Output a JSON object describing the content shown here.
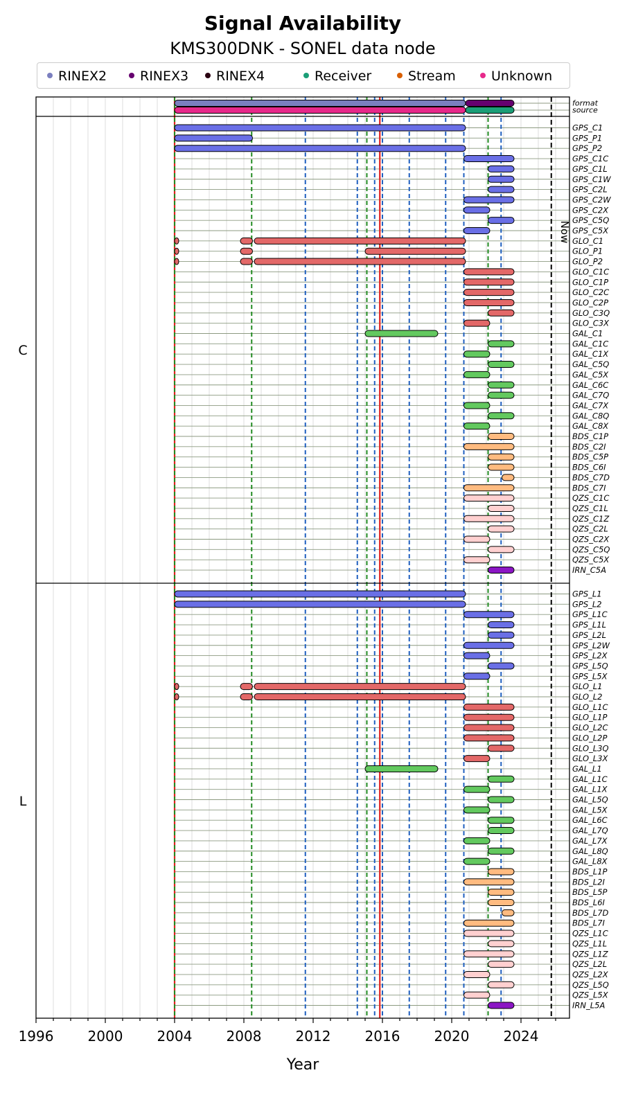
{
  "chart_data": {
    "type": "gantt",
    "title": "Signal Availability",
    "subtitle": "KMS300DNK - SONEL data node",
    "xlabel": "Year",
    "xlim": [
      1996,
      2026.8
    ],
    "xticks": [
      1996,
      2000,
      2004,
      2008,
      2012,
      2016,
      2020,
      2024
    ],
    "now_label": "Now",
    "now": 2025.75,
    "legend": [
      {
        "name": "RINEX2",
        "color": "#7b7fbf"
      },
      {
        "name": "RINEX3",
        "color": "#66006f"
      },
      {
        "name": "RINEX4",
        "color": "#2a0011"
      },
      {
        "name": "Receiver",
        "color": "#1b9e77"
      },
      {
        "name": "Stream",
        "color": "#d95f02"
      },
      {
        "name": "Unknown",
        "color": "#e7298a"
      }
    ],
    "constellation_colors": {
      "GPS": "#6a6fe6",
      "GLO": "#e36868",
      "GAL": "#63c95f",
      "BDS": "#ffbb80",
      "QZS": "#ffd0d0",
      "IRN": "#8b16c4"
    },
    "vlines": [
      {
        "x": 2004.0,
        "color": "#e02020",
        "style": "solid"
      },
      {
        "x": 2015.85,
        "color": "#e02020",
        "style": "solid"
      },
      {
        "x": 2004.0,
        "color": "#228b22",
        "style": "dashed"
      },
      {
        "x": 2008.45,
        "color": "#228b22",
        "style": "dashed"
      },
      {
        "x": 2015.1,
        "color": "#228b22",
        "style": "dashed"
      },
      {
        "x": 2022.1,
        "color": "#228b22",
        "style": "dashed"
      },
      {
        "x": 2011.55,
        "color": "#1f5fbf",
        "style": "dashed"
      },
      {
        "x": 2014.55,
        "color": "#1f5fbf",
        "style": "dashed"
      },
      {
        "x": 2015.55,
        "color": "#1f5fbf",
        "style": "dashed"
      },
      {
        "x": 2016.0,
        "color": "#1f5fbf",
        "style": "dashed"
      },
      {
        "x": 2017.55,
        "color": "#1f5fbf",
        "style": "dashed"
      },
      {
        "x": 2019.65,
        "color": "#1f5fbf",
        "style": "dashed"
      },
      {
        "x": 2020.7,
        "color": "#1f5fbf",
        "style": "dashed"
      },
      {
        "x": 2022.85,
        "color": "#1f5fbf",
        "style": "dashed"
      }
    ],
    "meta_rows": [
      {
        "label": "format",
        "segments": [
          [
            2004.0,
            2020.8,
            "#7b7fbf"
          ],
          [
            2020.8,
            2023.6,
            "#66006f"
          ]
        ]
      },
      {
        "label": "source",
        "segments": [
          [
            2004.0,
            2020.8,
            "#e7298a"
          ],
          [
            2020.8,
            2023.6,
            "#1b9e77"
          ]
        ]
      }
    ],
    "panels": [
      {
        "label": "C",
        "rows": [
          {
            "label": "GPS_C1",
            "segments": [
              [
                2004.0,
                2020.8
              ]
            ]
          },
          {
            "label": "GPS_P1",
            "segments": [
              [
                2004.0,
                2008.5
              ]
            ]
          },
          {
            "label": "GPS_P2",
            "segments": [
              [
                2004.0,
                2020.8
              ]
            ]
          },
          {
            "label": "GPS_C1C",
            "segments": [
              [
                2020.7,
                2023.6
              ]
            ]
          },
          {
            "label": "GPS_C1L",
            "segments": [
              [
                2022.1,
                2023.6
              ]
            ]
          },
          {
            "label": "GPS_C1W",
            "segments": [
              [
                2022.1,
                2023.6
              ]
            ]
          },
          {
            "label": "GPS_C2L",
            "segments": [
              [
                2022.1,
                2023.6
              ]
            ]
          },
          {
            "label": "GPS_C2W",
            "segments": [
              [
                2020.7,
                2023.6
              ]
            ]
          },
          {
            "label": "GPS_C2X",
            "segments": [
              [
                2020.7,
                2022.2
              ]
            ]
          },
          {
            "label": "GPS_C5Q",
            "segments": [
              [
                2022.1,
                2023.6
              ]
            ]
          },
          {
            "label": "GPS_C5X",
            "segments": [
              [
                2020.7,
                2022.2
              ]
            ]
          },
          {
            "label": "GLO_C1",
            "segments": [
              [
                2004.0,
                2004.1
              ],
              [
                2007.8,
                2008.5
              ],
              [
                2008.6,
                2020.8
              ]
            ]
          },
          {
            "label": "GLO_P1",
            "segments": [
              [
                2004.0,
                2004.1
              ],
              [
                2007.8,
                2008.5
              ],
              [
                2015.0,
                2020.8
              ]
            ]
          },
          {
            "label": "GLO_P2",
            "segments": [
              [
                2004.0,
                2004.1
              ],
              [
                2007.8,
                2008.5
              ],
              [
                2008.6,
                2020.8
              ]
            ]
          },
          {
            "label": "GLO_C1C",
            "segments": [
              [
                2020.7,
                2023.6
              ]
            ]
          },
          {
            "label": "GLO_C1P",
            "segments": [
              [
                2020.7,
                2023.6
              ]
            ]
          },
          {
            "label": "GLO_C2C",
            "segments": [
              [
                2020.7,
                2023.6
              ]
            ]
          },
          {
            "label": "GLO_C2P",
            "segments": [
              [
                2020.7,
                2023.6
              ]
            ]
          },
          {
            "label": "GLO_C3Q",
            "segments": [
              [
                2022.1,
                2023.6
              ]
            ]
          },
          {
            "label": "GLO_C3X",
            "segments": [
              [
                2020.7,
                2022.2
              ]
            ]
          },
          {
            "label": "GAL_C1",
            "segments": [
              [
                2015.0,
                2019.2
              ]
            ]
          },
          {
            "label": "GAL_C1C",
            "segments": [
              [
                2022.1,
                2023.6
              ]
            ]
          },
          {
            "label": "GAL_C1X",
            "segments": [
              [
                2020.7,
                2022.2
              ]
            ]
          },
          {
            "label": "GAL_C5Q",
            "segments": [
              [
                2022.1,
                2023.6
              ]
            ]
          },
          {
            "label": "GAL_C5X",
            "segments": [
              [
                2020.7,
                2022.2
              ]
            ]
          },
          {
            "label": "GAL_C6C",
            "segments": [
              [
                2022.1,
                2023.6
              ]
            ]
          },
          {
            "label": "GAL_C7Q",
            "segments": [
              [
                2022.1,
                2023.6
              ]
            ]
          },
          {
            "label": "GAL_C7X",
            "segments": [
              [
                2020.7,
                2022.2
              ]
            ]
          },
          {
            "label": "GAL_C8Q",
            "segments": [
              [
                2022.1,
                2023.6
              ]
            ]
          },
          {
            "label": "GAL_C8X",
            "segments": [
              [
                2020.7,
                2022.2
              ]
            ]
          },
          {
            "label": "BDS_C1P",
            "segments": [
              [
                2022.1,
                2023.6
              ]
            ]
          },
          {
            "label": "BDS_C2I",
            "segments": [
              [
                2020.7,
                2023.6
              ]
            ]
          },
          {
            "label": "BDS_C5P",
            "segments": [
              [
                2022.1,
                2023.6
              ]
            ]
          },
          {
            "label": "BDS_C6I",
            "segments": [
              [
                2022.1,
                2023.6
              ]
            ]
          },
          {
            "label": "BDS_C7D",
            "segments": [
              [
                2022.9,
                2023.6
              ]
            ]
          },
          {
            "label": "BDS_C7I",
            "segments": [
              [
                2020.7,
                2023.6
              ]
            ]
          },
          {
            "label": "QZS_C1C",
            "segments": [
              [
                2020.7,
                2023.6
              ]
            ]
          },
          {
            "label": "QZS_C1L",
            "segments": [
              [
                2022.1,
                2023.6
              ]
            ]
          },
          {
            "label": "QZS_C1Z",
            "segments": [
              [
                2020.7,
                2023.6
              ]
            ]
          },
          {
            "label": "QZS_C2L",
            "segments": [
              [
                2022.1,
                2023.6
              ]
            ]
          },
          {
            "label": "QZS_C2X",
            "segments": [
              [
                2020.7,
                2022.2
              ]
            ]
          },
          {
            "label": "QZS_C5Q",
            "segments": [
              [
                2022.1,
                2023.6
              ]
            ]
          },
          {
            "label": "QZS_C5X",
            "segments": [
              [
                2020.7,
                2022.2
              ]
            ]
          },
          {
            "label": "IRN_C5A",
            "segments": [
              [
                2022.1,
                2023.6
              ]
            ]
          }
        ]
      },
      {
        "label": "L",
        "rows": [
          {
            "label": "GPS_L1",
            "segments": [
              [
                2004.0,
                2020.8
              ]
            ]
          },
          {
            "label": "GPS_L2",
            "segments": [
              [
                2004.0,
                2020.8
              ]
            ]
          },
          {
            "label": "GPS_L1C",
            "segments": [
              [
                2020.7,
                2023.6
              ]
            ]
          },
          {
            "label": "GPS_L1L",
            "segments": [
              [
                2022.1,
                2023.6
              ]
            ]
          },
          {
            "label": "GPS_L2L",
            "segments": [
              [
                2022.1,
                2023.6
              ]
            ]
          },
          {
            "label": "GPS_L2W",
            "segments": [
              [
                2020.7,
                2023.6
              ]
            ]
          },
          {
            "label": "GPS_L2X",
            "segments": [
              [
                2020.7,
                2022.2
              ]
            ]
          },
          {
            "label": "GPS_L5Q",
            "segments": [
              [
                2022.1,
                2023.6
              ]
            ]
          },
          {
            "label": "GPS_L5X",
            "segments": [
              [
                2020.7,
                2022.2
              ]
            ]
          },
          {
            "label": "GLO_L1",
            "segments": [
              [
                2004.0,
                2004.1
              ],
              [
                2007.8,
                2008.5
              ],
              [
                2008.6,
                2020.8
              ]
            ]
          },
          {
            "label": "GLO_L2",
            "segments": [
              [
                2004.0,
                2004.1
              ],
              [
                2007.8,
                2008.5
              ],
              [
                2008.6,
                2020.8
              ]
            ]
          },
          {
            "label": "GLO_L1C",
            "segments": [
              [
                2020.7,
                2023.6
              ]
            ]
          },
          {
            "label": "GLO_L1P",
            "segments": [
              [
                2020.7,
                2023.6
              ]
            ]
          },
          {
            "label": "GLO_L2C",
            "segments": [
              [
                2020.7,
                2023.6
              ]
            ]
          },
          {
            "label": "GLO_L2P",
            "segments": [
              [
                2020.7,
                2023.6
              ]
            ]
          },
          {
            "label": "GLO_L3Q",
            "segments": [
              [
                2022.1,
                2023.6
              ]
            ]
          },
          {
            "label": "GLO_L3X",
            "segments": [
              [
                2020.7,
                2022.2
              ]
            ]
          },
          {
            "label": "GAL_L1",
            "segments": [
              [
                2015.0,
                2019.2
              ]
            ]
          },
          {
            "label": "GAL_L1C",
            "segments": [
              [
                2022.1,
                2023.6
              ]
            ]
          },
          {
            "label": "GAL_L1X",
            "segments": [
              [
                2020.7,
                2022.2
              ]
            ]
          },
          {
            "label": "GAL_L5Q",
            "segments": [
              [
                2022.1,
                2023.6
              ]
            ]
          },
          {
            "label": "GAL_L5X",
            "segments": [
              [
                2020.7,
                2022.2
              ]
            ]
          },
          {
            "label": "GAL_L6C",
            "segments": [
              [
                2022.1,
                2023.6
              ]
            ]
          },
          {
            "label": "GAL_L7Q",
            "segments": [
              [
                2022.1,
                2023.6
              ]
            ]
          },
          {
            "label": "GAL_L7X",
            "segments": [
              [
                2020.7,
                2022.2
              ]
            ]
          },
          {
            "label": "GAL_L8Q",
            "segments": [
              [
                2022.1,
                2023.6
              ]
            ]
          },
          {
            "label": "GAL_L8X",
            "segments": [
              [
                2020.7,
                2022.2
              ]
            ]
          },
          {
            "label": "BDS_L1P",
            "segments": [
              [
                2022.1,
                2023.6
              ]
            ]
          },
          {
            "label": "BDS_L2I",
            "segments": [
              [
                2020.7,
                2023.6
              ]
            ]
          },
          {
            "label": "BDS_L5P",
            "segments": [
              [
                2022.1,
                2023.6
              ]
            ]
          },
          {
            "label": "BDS_L6I",
            "segments": [
              [
                2022.1,
                2023.6
              ]
            ]
          },
          {
            "label": "BDS_L7D",
            "segments": [
              [
                2022.9,
                2023.6
              ]
            ]
          },
          {
            "label": "BDS_L7I",
            "segments": [
              [
                2020.7,
                2023.6
              ]
            ]
          },
          {
            "label": "QZS_L1C",
            "segments": [
              [
                2020.7,
                2023.6
              ]
            ]
          },
          {
            "label": "QZS_L1L",
            "segments": [
              [
                2022.1,
                2023.6
              ]
            ]
          },
          {
            "label": "QZS_L1Z",
            "segments": [
              [
                2020.7,
                2023.6
              ]
            ]
          },
          {
            "label": "QZS_L2L",
            "segments": [
              [
                2022.1,
                2023.6
              ]
            ]
          },
          {
            "label": "QZS_L2X",
            "segments": [
              [
                2020.7,
                2022.2
              ]
            ]
          },
          {
            "label": "QZS_L5Q",
            "segments": [
              [
                2022.1,
                2023.6
              ]
            ]
          },
          {
            "label": "QZS_L5X",
            "segments": [
              [
                2020.7,
                2022.2
              ]
            ]
          },
          {
            "label": "IRN_L5A",
            "segments": [
              [
                2022.1,
                2023.6
              ]
            ]
          }
        ]
      }
    ]
  }
}
